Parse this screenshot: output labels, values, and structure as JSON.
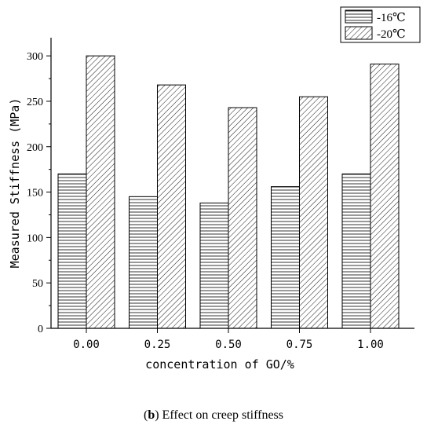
{
  "chart_data": {
    "type": "bar",
    "categories": [
      "0.00",
      "0.25",
      "0.50",
      "0.75",
      "1.00"
    ],
    "series": [
      {
        "name": "-16℃",
        "values": [
          170,
          145,
          138,
          156,
          170
        ],
        "pattern": "horizontal-lines"
      },
      {
        "name": "-20℃",
        "values": [
          300,
          268,
          243,
          255,
          291
        ],
        "pattern": "diagonal-lines"
      }
    ],
    "title": "",
    "xlabel": "concentration of GO/%",
    "ylabel": "Measured Stiffness (MPa)",
    "ylim": [
      0,
      320
    ],
    "yticks": [
      0,
      50,
      100,
      150,
      200,
      250,
      300
    ],
    "grid": false,
    "legend": "top-right"
  },
  "caption": {
    "label": "b",
    "text": "Effect on creep stiffness"
  }
}
